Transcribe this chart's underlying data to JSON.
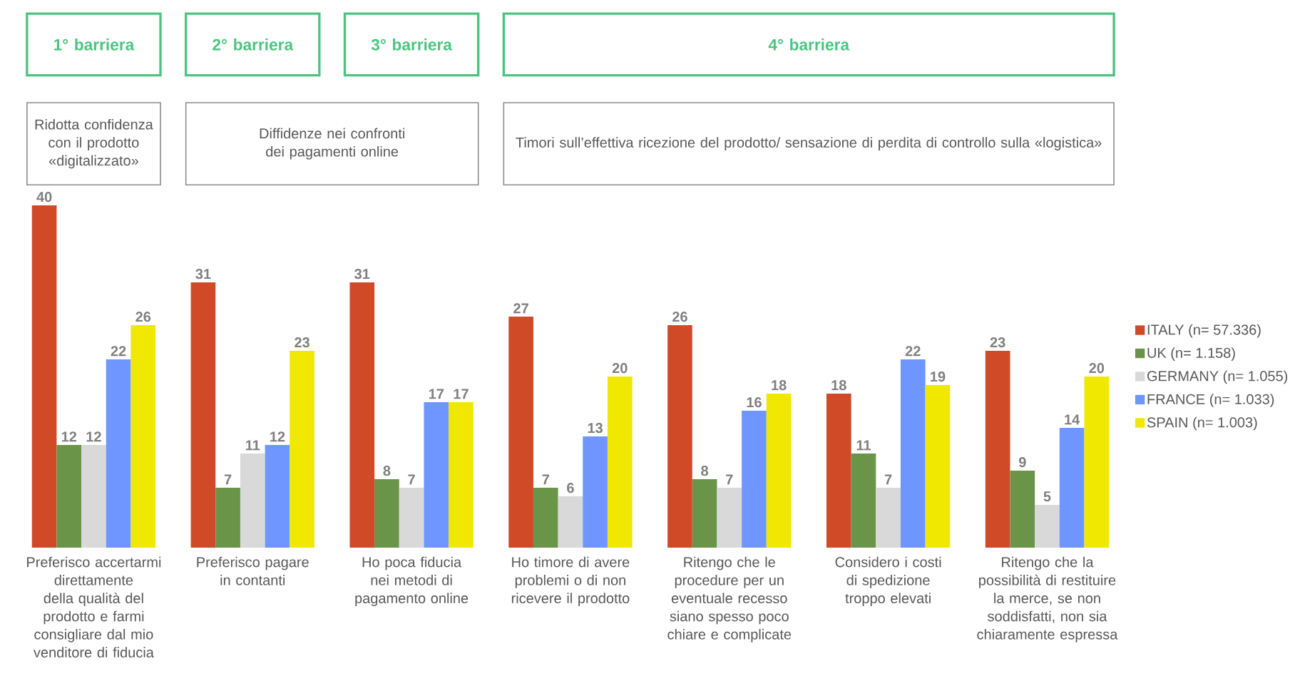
{
  "chart_data": {
    "type": "bar",
    "categories": [
      "Preferisco accertarmi direttamente della qualità del prodotto e farmi consigliare dal mio venditore di fiducia",
      "Preferisco pagare in contanti",
      "Ho poca fiducia nei metodi di pagamento online",
      "Ho timore di avere problemi o di non ricevere il prodotto",
      "Ritengo che le procedure per un eventuale recesso siano spesso poco chiare e complicate",
      "Considero i costi di spedizione troppo elevati",
      "Ritengo che la possibilità di restituire la merce, se non soddisfatti, non sia chiaramente espressa"
    ],
    "series": [
      {
        "name": "ITALY (n= 57.336)",
        "color": "#d04a28",
        "values": [
          40,
          31,
          31,
          27,
          26,
          18,
          23
        ]
      },
      {
        "name": "UK (n= 1.158)",
        "color": "#6a9447",
        "values": [
          12,
          7,
          8,
          7,
          8,
          11,
          9
        ]
      },
      {
        "name": "GERMANY (n= 1.055)",
        "color": "#d9d9d9",
        "values": [
          12,
          11,
          7,
          6,
          7,
          7,
          5
        ]
      },
      {
        "name": "FRANCE (n= 1.033)",
        "color": "#6f96ff",
        "values": [
          22,
          12,
          17,
          13,
          16,
          22,
          14
        ]
      },
      {
        "name": "SPAIN (n= 1.003)",
        "color": "#f0e800",
        "values": [
          26,
          23,
          17,
          20,
          18,
          19,
          20
        ]
      }
    ],
    "data_labels": true,
    "legend": "right",
    "annotations": [
      "1° barriera",
      "2° barriera",
      "3° barriera",
      "4° barriera",
      "Ridotta confidenza con il prodotto «digitalizzato»",
      "Diffidenze nei confronti dei pagamenti online",
      "Timori sull’effettiva ricezione del prodotto/ sensazione di perdita di controllo sulla «logistica»"
    ]
  }
}
